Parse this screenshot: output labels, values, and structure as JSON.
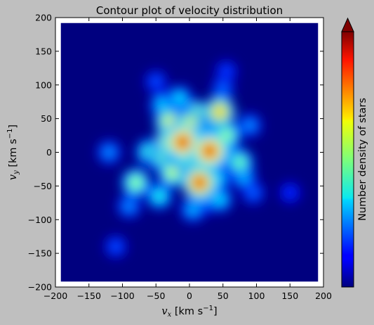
{
  "chart_data": {
    "type": "heatmap",
    "title": "Contour plot of velocity distribution",
    "xlabel": {
      "var": "v",
      "sub": "x",
      "unit": " [km s",
      "sup": "−1",
      "close": "]"
    },
    "ylabel": {
      "var": "v",
      "sub": "y",
      "unit": " [km s",
      "sup": "−1",
      "close": "]"
    },
    "xlim": [
      -200,
      200
    ],
    "ylim": [
      -200,
      200
    ],
    "data_extent": [
      -192,
      192
    ],
    "xticks": [
      "−200",
      "−150",
      "−100",
      "−50",
      "0",
      "50",
      "100",
      "150",
      "200"
    ],
    "yticks": [
      "−200",
      "−150",
      "−100",
      "−50",
      "0",
      "50",
      "100",
      "150",
      "200"
    ],
    "xtick_values": [
      -200,
      -150,
      -100,
      -50,
      0,
      50,
      100,
      150,
      200
    ],
    "ytick_values": [
      -200,
      -150,
      -100,
      -50,
      0,
      50,
      100,
      150,
      200
    ],
    "colorbar_label": "Number density of stars",
    "colormap": "jet",
    "colorbar_extend": "max",
    "grid": false,
    "background": "#00007f",
    "hotspots": [
      {
        "x": -10,
        "y": 15,
        "level": 0.95
      },
      {
        "x": -25,
        "y": 15,
        "level": 0.85
      },
      {
        "x": 5,
        "y": 15,
        "level": 0.75
      },
      {
        "x": 30,
        "y": 2,
        "level": 0.95
      },
      {
        "x": 15,
        "y": -45,
        "level": 0.9
      },
      {
        "x": 20,
        "y": -20,
        "level": 0.75
      },
      {
        "x": 0,
        "y": 40,
        "level": 0.65
      },
      {
        "x": 10,
        "y": 55,
        "level": 0.6
      },
      {
        "x": 45,
        "y": 60,
        "level": 0.7
      },
      {
        "x": -30,
        "y": 45,
        "level": 0.6
      },
      {
        "x": -25,
        "y": -30,
        "level": 0.55
      },
      {
        "x": 0,
        "y": -15,
        "level": 0.55
      },
      {
        "x": 55,
        "y": 25,
        "level": 0.5
      },
      {
        "x": 60,
        "y": -5,
        "level": 0.45
      },
      {
        "x": 75,
        "y": -15,
        "level": 0.45
      },
      {
        "x": -60,
        "y": 0,
        "level": 0.4
      },
      {
        "x": -80,
        "y": -45,
        "level": 0.5
      },
      {
        "x": -45,
        "y": -65,
        "level": 0.35
      },
      {
        "x": 45,
        "y": -70,
        "level": 0.3
      },
      {
        "x": 20,
        "y": -75,
        "level": 0.25
      },
      {
        "x": -40,
        "y": 70,
        "level": 0.3
      },
      {
        "x": 40,
        "y": 40,
        "level": 0.4
      },
      {
        "x": 5,
        "y": -85,
        "level": 0.25
      },
      {
        "x": -120,
        "y": 0,
        "level": 0.2
      },
      {
        "x": 50,
        "y": 95,
        "level": 0.15
      },
      {
        "x": -50,
        "y": 105,
        "level": 0.12
      },
      {
        "x": 55,
        "y": 120,
        "level": 0.1
      },
      {
        "x": 90,
        "y": 40,
        "level": 0.2
      },
      {
        "x": 95,
        "y": -60,
        "level": 0.15
      },
      {
        "x": -110,
        "y": -140,
        "level": 0.12
      },
      {
        "x": 150,
        "y": -60,
        "level": 0.08
      },
      {
        "x": -90,
        "y": -80,
        "level": 0.2
      },
      {
        "x": 80,
        "y": -35,
        "level": 0.3
      },
      {
        "x": -15,
        "y": 80,
        "level": 0.3
      },
      {
        "x": 15,
        "y": -30,
        "level": 0.6
      },
      {
        "x": -40,
        "y": -10,
        "level": 0.45
      },
      {
        "x": 40,
        "y": -40,
        "level": 0.35
      }
    ]
  }
}
